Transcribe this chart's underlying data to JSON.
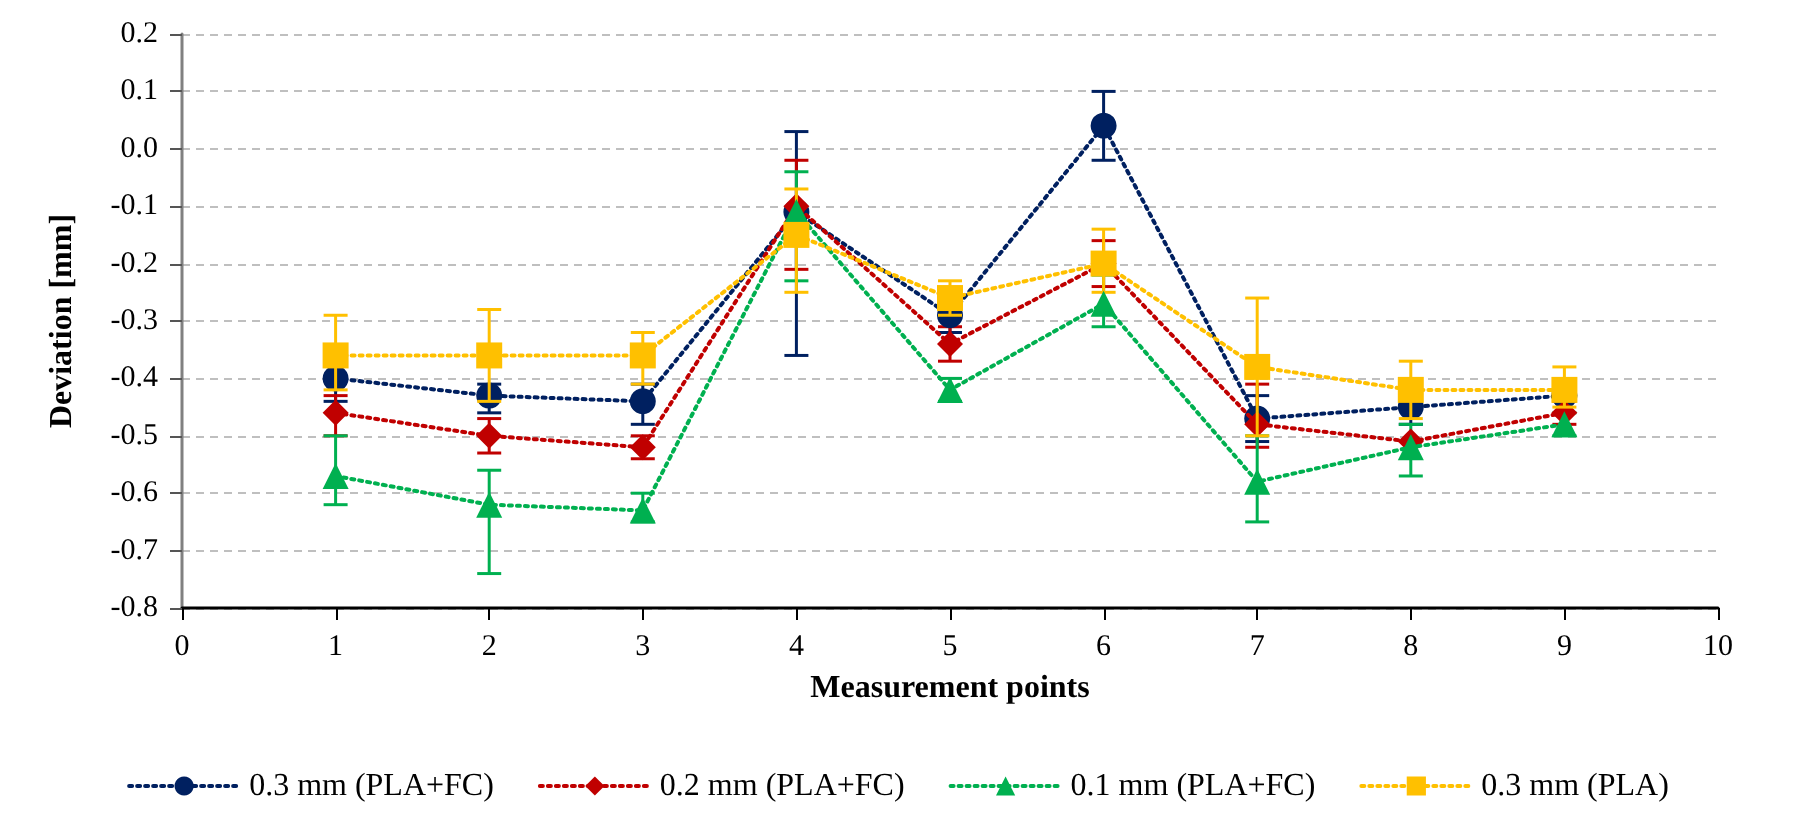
{
  "chart_data": {
    "type": "line",
    "xlabel": "Measurement points",
    "ylabel": "Deviation [mm]",
    "x": [
      1,
      2,
      3,
      4,
      5,
      6,
      7,
      8,
      9
    ],
    "xlim": [
      0,
      10
    ],
    "xticks": [
      0,
      1,
      2,
      3,
      4,
      5,
      6,
      7,
      8,
      9,
      10
    ],
    "ylim": [
      -0.8,
      0.2
    ],
    "yticks": [
      -0.8,
      -0.7,
      -0.6,
      -0.5,
      -0.4,
      -0.3,
      -0.2,
      -0.1,
      {
        "value": 0,
        "label": "0.0"
      },
      0.1,
      0.2
    ],
    "grid": "y",
    "legend": "bottom",
    "line_style": "dotted",
    "series": [
      {
        "name": "0.3 mm (PLA+FC)",
        "color": "#002060",
        "marker": "circle",
        "values": [
          -0.4,
          -0.43,
          -0.44,
          -0.11,
          -0.29,
          0.04,
          -0.47,
          -0.45,
          -0.43
        ],
        "errors": [
          [
            -0.44,
            -0.4
          ],
          [
            -0.46,
            -0.41
          ],
          [
            -0.48,
            -0.41
          ],
          [
            -0.36,
            0.03
          ],
          [
            -0.32,
            -0.29
          ],
          [
            -0.02,
            0.1
          ],
          [
            -0.51,
            -0.43
          ],
          [
            -0.48,
            -0.45
          ],
          null
        ]
      },
      {
        "name": "0.2 mm (PLA+FC)",
        "color": "#c00000",
        "marker": "diamond",
        "values": [
          -0.46,
          -0.5,
          -0.52,
          -0.1,
          -0.34,
          -0.2,
          -0.48,
          -0.51,
          -0.46
        ],
        "errors": [
          [
            -0.5,
            -0.43
          ],
          [
            -0.53,
            -0.47
          ],
          [
            -0.54,
            -0.5
          ],
          [
            -0.21,
            -0.02
          ],
          [
            -0.37,
            -0.31
          ],
          [
            -0.24,
            -0.16
          ],
          [
            -0.52,
            -0.41
          ],
          null,
          [
            -0.48,
            -0.44
          ]
        ]
      },
      {
        "name": "0.1 mm (PLA+FC)",
        "color": "#00b050",
        "marker": "triangle",
        "values": [
          -0.57,
          -0.62,
          -0.63,
          -0.11,
          -0.42,
          -0.27,
          -0.58,
          -0.52,
          -0.48
        ],
        "errors": [
          [
            -0.62,
            -0.5
          ],
          [
            -0.74,
            -0.56
          ],
          [
            -0.65,
            -0.6
          ],
          [
            -0.23,
            -0.04
          ],
          [
            -0.44,
            -0.4
          ],
          [
            -0.31,
            -0.22
          ],
          [
            -0.65,
            -0.5
          ],
          [
            -0.57,
            -0.48
          ],
          [
            -0.5,
            -0.46
          ]
        ]
      },
      {
        "name": "0.3 mm (PLA)",
        "color": "#ffc000",
        "marker": "square",
        "values": [
          -0.36,
          -0.36,
          -0.36,
          -0.15,
          -0.26,
          -0.2,
          -0.38,
          -0.42,
          -0.42
        ],
        "errors": [
          [
            -0.42,
            -0.29
          ],
          [
            -0.44,
            -0.28
          ],
          [
            -0.41,
            -0.32
          ],
          [
            -0.25,
            -0.07
          ],
          [
            -0.29,
            -0.23
          ],
          [
            -0.25,
            -0.14
          ],
          [
            -0.5,
            -0.26
          ],
          [
            -0.47,
            -0.37
          ],
          [
            -0.45,
            -0.38
          ]
        ]
      }
    ]
  }
}
